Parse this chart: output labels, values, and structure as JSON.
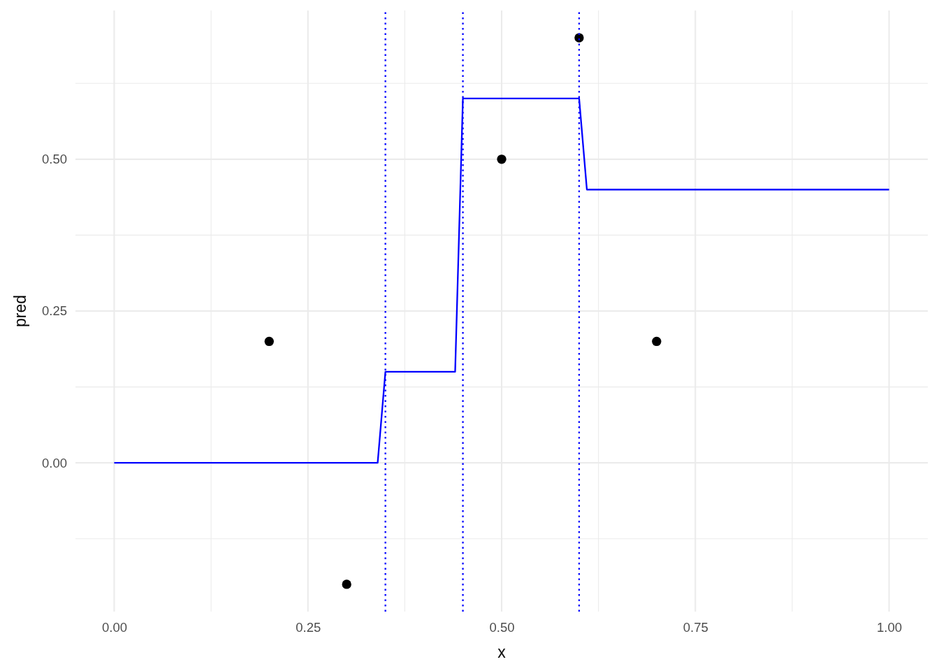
{
  "chart_data": {
    "type": "line",
    "xlabel": "x",
    "ylabel": "pred",
    "xlim": [
      -0.05,
      1.05
    ],
    "ylim": [
      -0.245,
      0.745
    ],
    "xticks": [
      {
        "value": 0,
        "label": "0.00"
      },
      {
        "value": 0.125,
        "label": null
      },
      {
        "value": 0.25,
        "label": "0.25"
      },
      {
        "value": 0.375,
        "label": null
      },
      {
        "value": 0.5,
        "label": "0.50"
      },
      {
        "value": 0.625,
        "label": null
      },
      {
        "value": 0.75,
        "label": "0.75"
      },
      {
        "value": 0.875,
        "label": null
      },
      {
        "value": 1,
        "label": "1.00"
      }
    ],
    "yticks": [
      {
        "value": -0.125,
        "label": null
      },
      {
        "value": 0,
        "label": "0.00"
      },
      {
        "value": 0.125,
        "label": null
      },
      {
        "value": 0.25,
        "label": "0.25"
      },
      {
        "value": 0.375,
        "label": null
      },
      {
        "value": 0.5,
        "label": "0.50"
      },
      {
        "value": 0.625,
        "label": null
      }
    ],
    "grid": true,
    "series": [
      {
        "type": "scatter",
        "color": "#000000",
        "marker": "circle",
        "x": [
          0.2,
          0.3,
          0.5,
          0.6,
          0.7
        ],
        "values": [
          0.2,
          -0.2,
          0.5,
          0.7,
          0.2
        ]
      },
      {
        "color": "#0000ff",
        "line_style": "solid",
        "x": [
          0,
          0.34,
          0.35,
          0.44,
          0.45,
          0.6,
          0.61,
          1
        ],
        "values": [
          0,
          0,
          0.15,
          0.15,
          0.6,
          0.6,
          0.45,
          0.45
        ]
      }
    ],
    "ref_lines": [
      {
        "axis": "x",
        "value": 0.35,
        "color": "#0000ff",
        "line_style": "dotted"
      },
      {
        "axis": "x",
        "value": 0.45,
        "color": "#0000ff",
        "line_style": "dotted"
      },
      {
        "axis": "x",
        "value": 0.6,
        "color": "#0000ff",
        "line_style": "dotted"
      }
    ]
  }
}
